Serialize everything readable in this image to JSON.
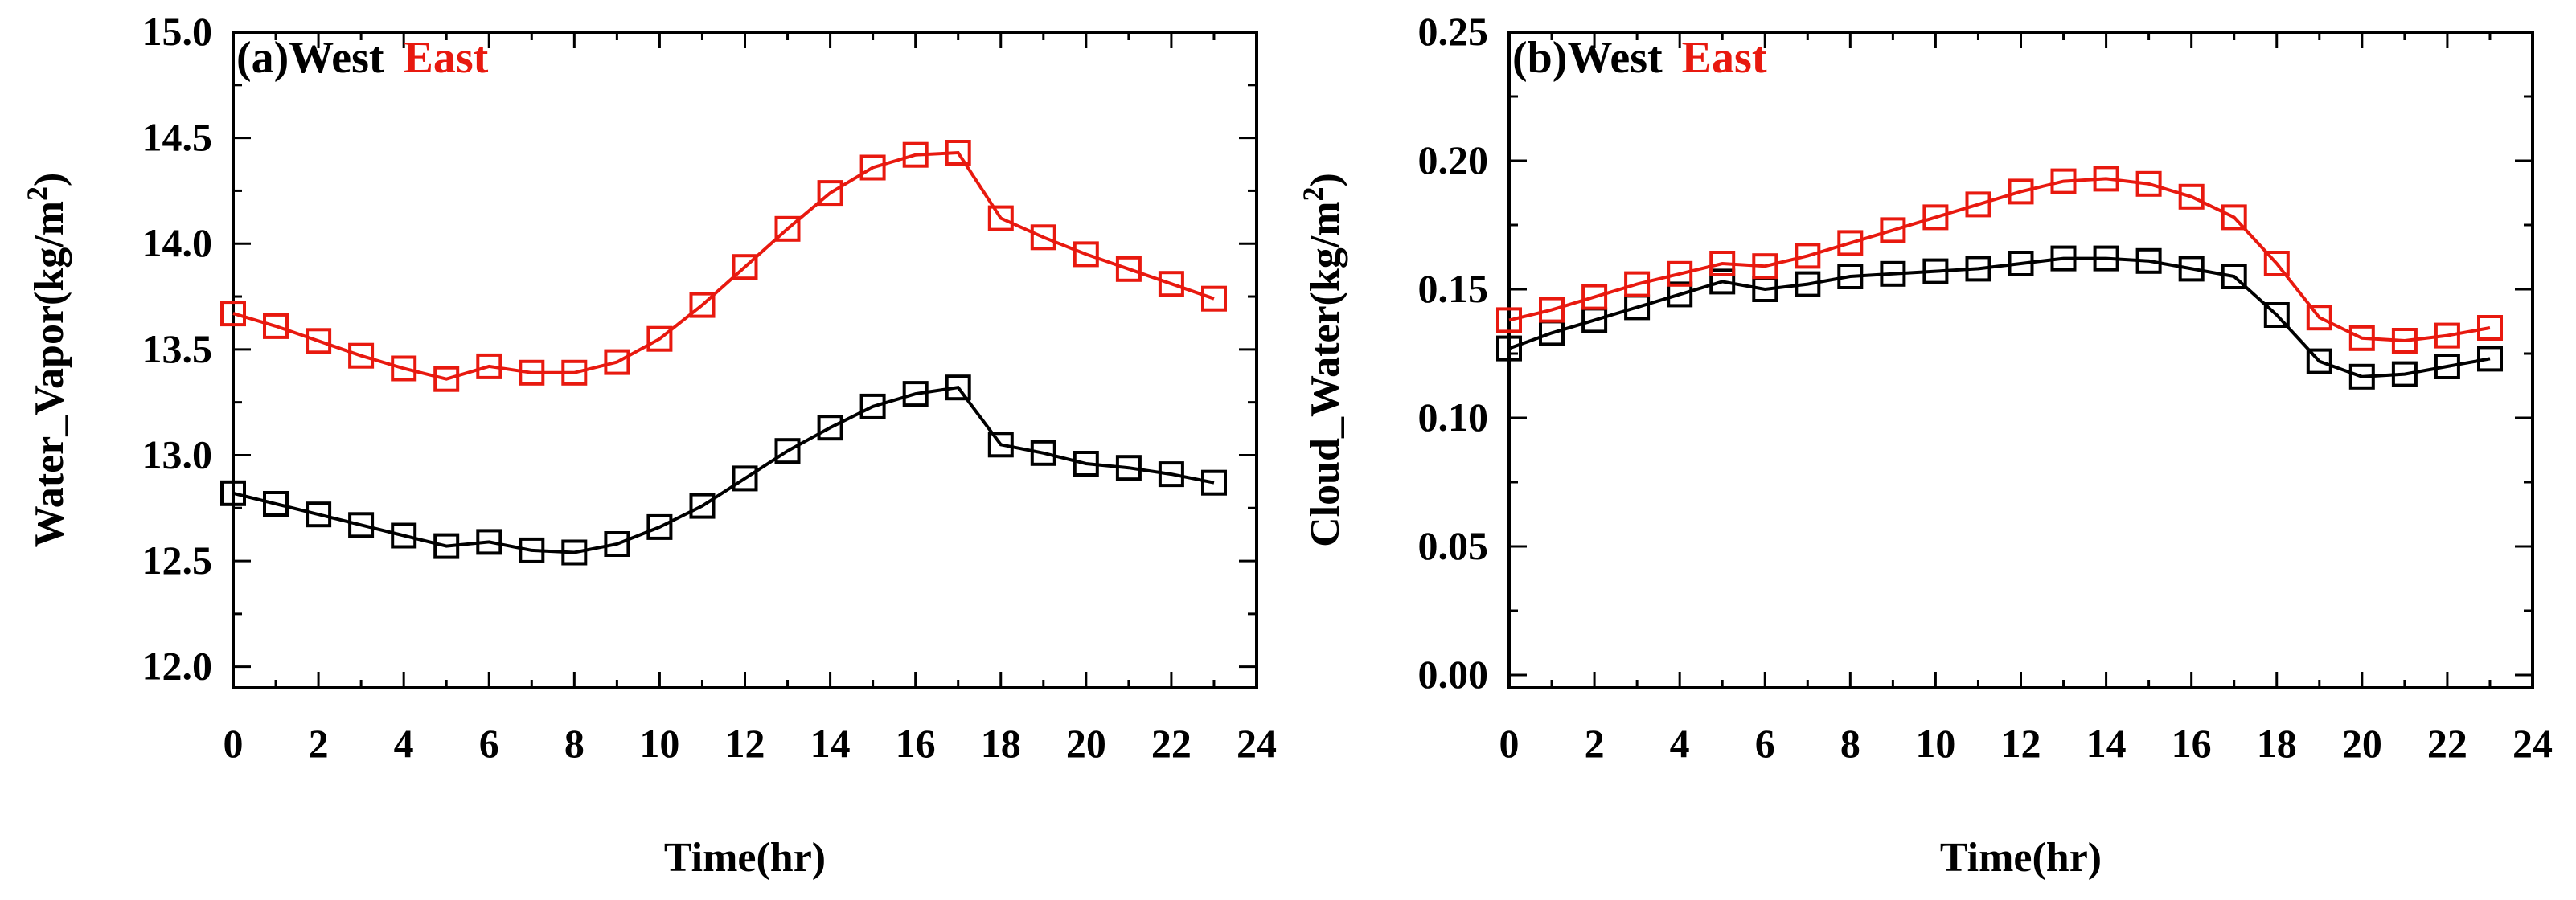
{
  "chart_data": [
    {
      "type": "line",
      "panel_label": "(a)",
      "legend": [
        "West",
        "East"
      ],
      "title": "(a)West East",
      "xlabel": "Time(hr)",
      "ylabel": "Water_Vapor(kg/m",
      "ylabel_superscript": "2",
      "ylabel_suffix": ")",
      "xlim": [
        0,
        24
      ],
      "ylim": [
        11.9,
        15.0
      ],
      "xticks": [
        0,
        2,
        4,
        6,
        8,
        10,
        12,
        14,
        16,
        18,
        20,
        22,
        24
      ],
      "xtick_labels": [
        "0",
        "2",
        "4",
        "6",
        "8",
        "10",
        "12",
        "14",
        "16",
        "18",
        "20",
        "22",
        "24"
      ],
      "yticks": [
        12.0,
        12.5,
        13.0,
        13.5,
        14.0,
        14.5,
        15.0
      ],
      "ytick_labels": [
        "12.0",
        "12.5",
        "13.0",
        "13.5",
        "14.0",
        "14.5",
        "15.0"
      ],
      "x": [
        0,
        1,
        2,
        3,
        4,
        5,
        6,
        7,
        8,
        9,
        10,
        11,
        12,
        13,
        14,
        15,
        16,
        17,
        18,
        19,
        20,
        21,
        22,
        23
      ],
      "series": [
        {
          "name": "West",
          "color": "#000000",
          "marker": "square",
          "values": [
            12.82,
            12.77,
            12.72,
            12.67,
            12.62,
            12.57,
            12.59,
            12.55,
            12.54,
            12.58,
            12.66,
            12.76,
            12.89,
            13.02,
            13.13,
            13.23,
            13.29,
            13.32,
            13.05,
            13.01,
            12.96,
            12.94,
            12.91,
            12.87
          ]
        },
        {
          "name": "East",
          "color": "#e8190f",
          "marker": "square",
          "values": [
            13.67,
            13.61,
            13.54,
            13.47,
            13.41,
            13.36,
            13.42,
            13.39,
            13.39,
            13.44,
            13.55,
            13.71,
            13.89,
            14.07,
            14.24,
            14.36,
            14.42,
            14.43,
            14.12,
            14.03,
            13.95,
            13.88,
            13.81,
            13.74
          ]
        }
      ]
    },
    {
      "type": "line",
      "panel_label": "(b)",
      "legend": [
        "West",
        "East"
      ],
      "title": "(b)West East",
      "xlabel": "Time(hr)",
      "ylabel": "Cloud_Water(kg/m",
      "ylabel_superscript": "2",
      "ylabel_suffix": ")",
      "xlim": [
        0,
        24
      ],
      "ylim": [
        -0.005,
        0.25
      ],
      "xticks": [
        0,
        2,
        4,
        6,
        8,
        10,
        12,
        14,
        16,
        18,
        20,
        22,
        24
      ],
      "xtick_labels": [
        "0",
        "2",
        "4",
        "6",
        "8",
        "10",
        "12",
        "14",
        "16",
        "18",
        "20",
        "22",
        "24"
      ],
      "yticks": [
        0.0,
        0.05,
        0.1,
        0.15,
        0.2,
        0.25
      ],
      "ytick_labels": [
        "0.00",
        "0.05",
        "0.10",
        "0.15",
        "0.20",
        "0.25"
      ],
      "x": [
        0,
        1,
        2,
        3,
        4,
        5,
        6,
        7,
        8,
        9,
        10,
        11,
        12,
        13,
        14,
        15,
        16,
        17,
        18,
        19,
        20,
        21,
        22,
        23
      ],
      "series": [
        {
          "name": "West",
          "color": "#000000",
          "marker": "square",
          "values": [
            0.127,
            0.133,
            0.138,
            0.143,
            0.148,
            0.153,
            0.15,
            0.152,
            0.155,
            0.156,
            0.157,
            0.158,
            0.16,
            0.162,
            0.162,
            0.161,
            0.158,
            0.155,
            0.14,
            0.122,
            0.116,
            0.117,
            0.12,
            0.123
          ]
        },
        {
          "name": "East",
          "color": "#e8190f",
          "marker": "square",
          "values": [
            0.138,
            0.142,
            0.147,
            0.152,
            0.156,
            0.16,
            0.159,
            0.163,
            0.168,
            0.173,
            0.178,
            0.183,
            0.188,
            0.192,
            0.193,
            0.191,
            0.186,
            0.178,
            0.16,
            0.139,
            0.131,
            0.13,
            0.132,
            0.135
          ]
        }
      ]
    }
  ]
}
